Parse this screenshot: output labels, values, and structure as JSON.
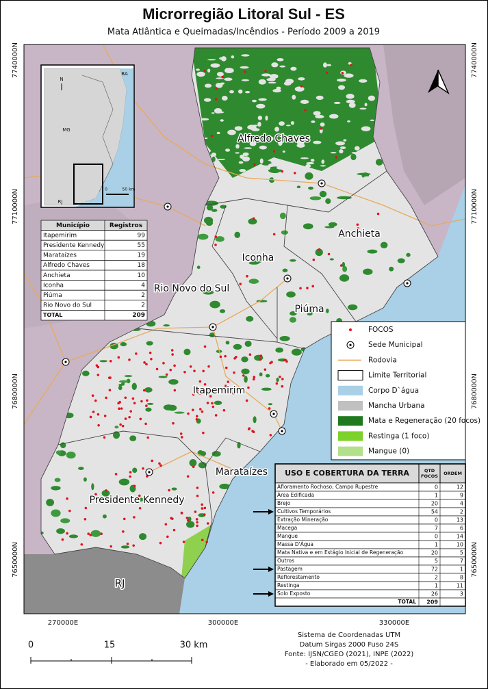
{
  "title": "Microrregião Litoral Sul - ES",
  "subtitle": "Mata Atlântica e Queimadas/Incêndios - Período 2009 a 2019",
  "grid_labels": {
    "north": [
      "7740000N",
      "7710000N",
      "7680000N",
      "7650000N"
    ],
    "east": [
      "270000E",
      "300000E",
      "330000E"
    ]
  },
  "map_labels": [
    "Alfredo Chaves",
    "Anchieta",
    "Iconha",
    "Rio Novo do Sul",
    "Piúma",
    "Itapemirim",
    "Marataízes",
    "Presidente Kennedy",
    "RJ"
  ],
  "inset": {
    "north": "N",
    "labels": [
      "BA",
      "MG",
      "RJ"
    ],
    "scale": [
      "0",
      "50 km"
    ]
  },
  "municipality_table": {
    "header": [
      "Município",
      "Registros"
    ],
    "rows": [
      [
        "Itapemirim",
        99
      ],
      [
        "Presidente Kennedy",
        55
      ],
      [
        "Marataízes",
        19
      ],
      [
        "Alfredo Chaves",
        18
      ],
      [
        "Anchieta",
        10
      ],
      [
        "Iconha",
        4
      ],
      [
        "Piúma",
        2
      ],
      [
        "Rio Novo do Sul",
        2
      ]
    ],
    "total": [
      "TOTAL",
      209
    ]
  },
  "legend": [
    "FOCOS",
    "Sede Municipal",
    "Rodovia",
    "Limite Territorial",
    "Corpo D`água",
    "Mancha Urbana",
    "Mata e Regeneração (20 focos)",
    "Restinga (1 foco)",
    "Mangue (0)"
  ],
  "land_use_table": {
    "title": "USO E COBERTURA DA TERRA",
    "header": [
      "QTD FOCOS",
      "ORDEM"
    ],
    "rows": [
      [
        "Afloramento Rochoso; Campo Rupestre",
        0,
        12
      ],
      [
        "Área Edificada",
        1,
        9
      ],
      [
        "Brejo",
        20,
        4
      ],
      [
        "Cultivos Temporários",
        54,
        2
      ],
      [
        "Extração Mineração",
        0,
        13
      ],
      [
        "Macega",
        7,
        6
      ],
      [
        "Mangue",
        0,
        14
      ],
      [
        "Massa D'Água",
        1,
        10
      ],
      [
        "Mata Nativa e em Estágio Inicial de Regeneração",
        20,
        5
      ],
      [
        "Outros",
        5,
        7
      ],
      [
        "Pastagem",
        72,
        1
      ],
      [
        "Reflorestamento",
        2,
        8
      ],
      [
        "Restinga",
        1,
        11
      ],
      [
        "Solo Exposto",
        26,
        3
      ]
    ],
    "total": [
      "TOTAL",
      209
    ]
  },
  "scale_bar": [
    "0",
    "15",
    "30 km"
  ],
  "credits": [
    "Sistema de Coordenadas UTM",
    "Datum Sirgas 2000 Fuso 24S",
    "Fonte: IJSN/CGEO (2021), INPE (2022)",
    "- Elaborado em 05/2022 -"
  ]
}
